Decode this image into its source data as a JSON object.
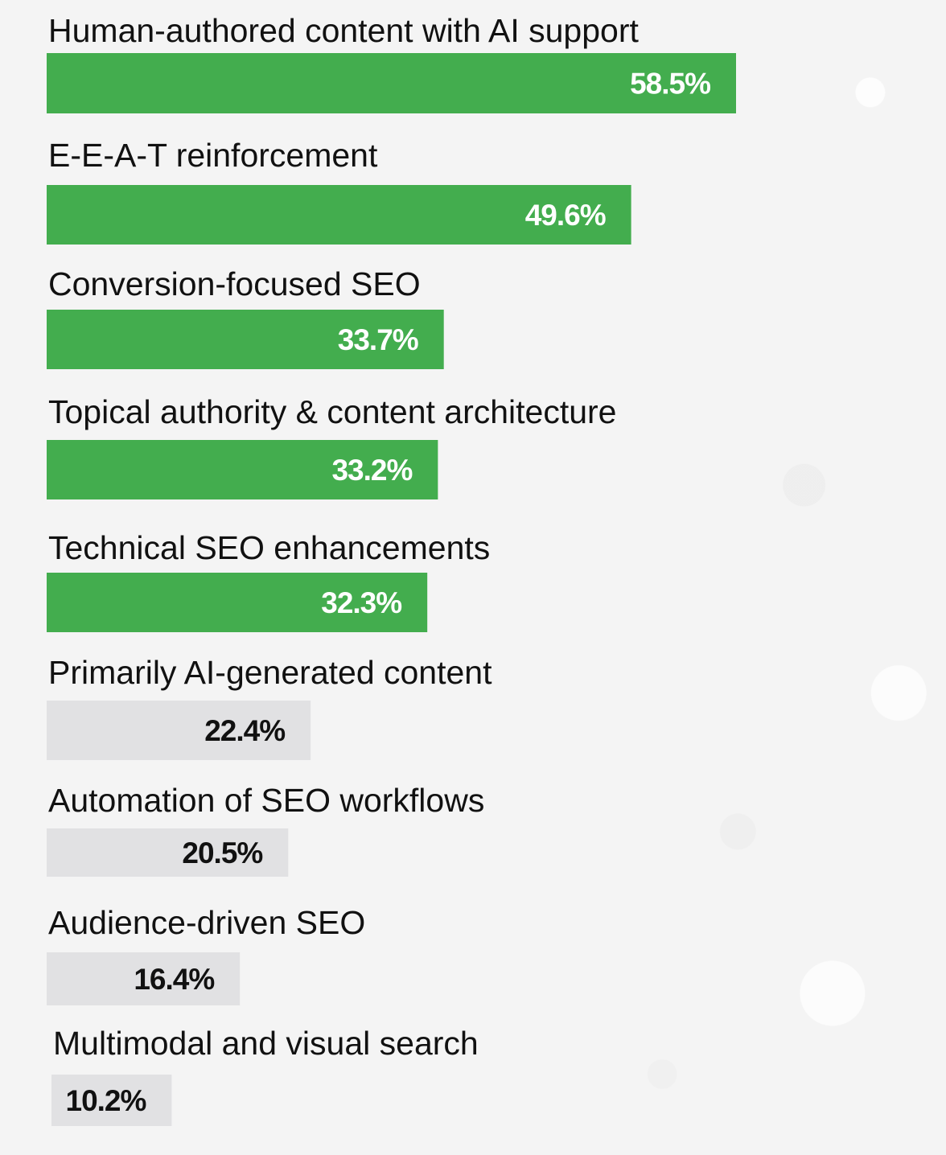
{
  "chart_data": {
    "type": "bar",
    "orientation": "horizontal",
    "categories": [
      "Human-authored content with AI support",
      "E-E-A-T reinforcement",
      "Conversion-focused SEO",
      "Topical authority & content architecture",
      "Technical SEO enhancements",
      "Primarily AI-generated content",
      "Automation of SEO workflows",
      "Audience-driven SEO",
      "Multimodal and visual search"
    ],
    "values": [
      58.5,
      49.6,
      33.7,
      33.2,
      32.3,
      22.4,
      20.5,
      16.4,
      10.2
    ],
    "value_labels": [
      "58.5%",
      "49.6%",
      "33.7%",
      "33.2%",
      "32.3%",
      "22.4%",
      "20.5%",
      "16.4%",
      "10.2%"
    ],
    "highlighted": [
      true,
      true,
      true,
      true,
      true,
      false,
      false,
      false,
      false
    ],
    "xlim": [
      0,
      100
    ],
    "grid": false,
    "legend": "none",
    "colors": {
      "highlight_bar": "#43ad4e",
      "highlight_text": "#ffffff",
      "muted_bar": "#e1e1e3",
      "muted_text": "#111111",
      "label_text": "#111111"
    }
  }
}
